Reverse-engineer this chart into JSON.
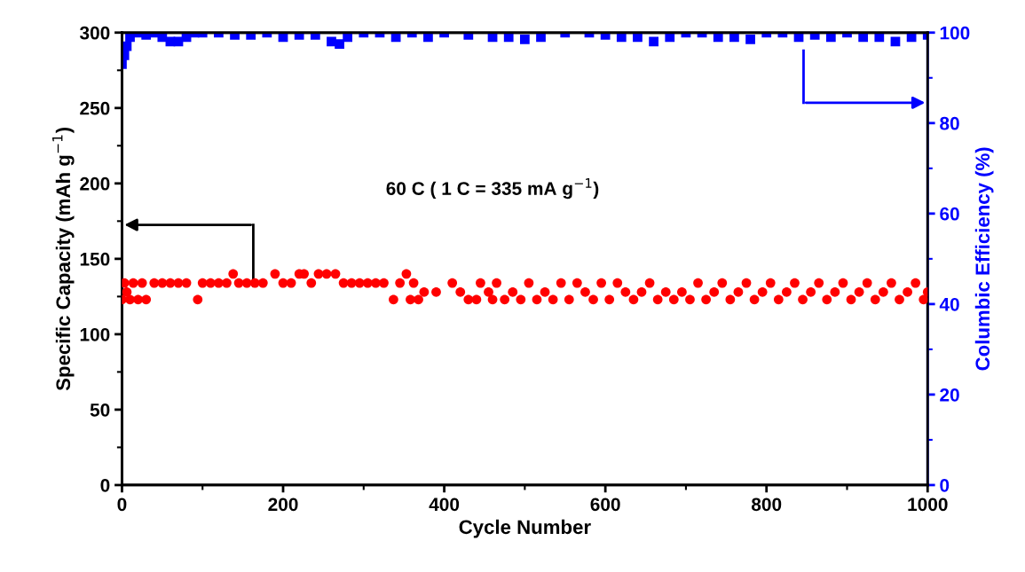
{
  "chart_data": {
    "type": "scatter",
    "xlabel": "Cycle Number",
    "ylabel": "Specific Capacity (mAh g$^{−1}$)",
    "y2label": "Columbic Efficiency (%)",
    "annotations": [
      "60 C ( 1 C = 335 mA g$^{−1}$)"
    ],
    "xlim": [
      0,
      1000
    ],
    "xticks": [
      0,
      200,
      400,
      600,
      800,
      1000
    ],
    "ylim": [
      0,
      300
    ],
    "yticks": [
      0,
      50,
      100,
      150,
      200,
      250,
      300
    ],
    "y2lim": [
      0,
      100
    ],
    "y2ticks": [
      0,
      20,
      40,
      60,
      80,
      100
    ],
    "grid": false,
    "legend": false,
    "series": [
      {
        "color": "#ff0000",
        "marker": "circle",
        "x": [
          0,
          3,
          6,
          10,
          14,
          20,
          25,
          30,
          40,
          50,
          60,
          70,
          80,
          94,
          100,
          110,
          120,
          130,
          138,
          145,
          155,
          165,
          175,
          190,
          200,
          210,
          220,
          226,
          235,
          244,
          254,
          265,
          275,
          285,
          295,
          305,
          315,
          325,
          337,
          345,
          353,
          358,
          362,
          368,
          375,
          390,
          410,
          420,
          430,
          440,
          445,
          455,
          460,
          465,
          475,
          485,
          495,
          505,
          515,
          525,
          535,
          545,
          555,
          565,
          575,
          585,
          595,
          605,
          615,
          625,
          635,
          645,
          655,
          665,
          675,
          685,
          695,
          705,
          715,
          725,
          735,
          745,
          755,
          765,
          775,
          785,
          795,
          805,
          815,
          825,
          835,
          845,
          855,
          865,
          875,
          885,
          895,
          905,
          915,
          925,
          935,
          945,
          955,
          965,
          975,
          985,
          995,
          1000
        ],
        "values": [
          123,
          134,
          128,
          123,
          134,
          123,
          134,
          123,
          134,
          134,
          134,
          134,
          134,
          123,
          134,
          134,
          134,
          134,
          140,
          134,
          134,
          134,
          134,
          140,
          134,
          134,
          140,
          140,
          134,
          140,
          140,
          140,
          134,
          134,
          134,
          134,
          134,
          134,
          123,
          134,
          140,
          123,
          134,
          123,
          128,
          128,
          134,
          128,
          123,
          123,
          134,
          128,
          123,
          134,
          123,
          128,
          123,
          134,
          123,
          128,
          123,
          134,
          123,
          134,
          128,
          123,
          134,
          123,
          134,
          128,
          123,
          128,
          134,
          123,
          128,
          123,
          128,
          123,
          134,
          123,
          128,
          134,
          123,
          128,
          134,
          123,
          128,
          134,
          123,
          128,
          134,
          123,
          128,
          134,
          123,
          128,
          134,
          123,
          128,
          134,
          123,
          128,
          134,
          123,
          128,
          134,
          123,
          128
        ]
      },
      {
        "color": "#0000ff",
        "marker": "square",
        "axis": "y2",
        "x": [
          0,
          3,
          6,
          10,
          20,
          30,
          40,
          50,
          60,
          70,
          80,
          90,
          100,
          120,
          140,
          160,
          180,
          200,
          220,
          240,
          260,
          270,
          280,
          300,
          320,
          340,
          360,
          380,
          400,
          430,
          460,
          480,
          500,
          520,
          550,
          580,
          600,
          620,
          640,
          660,
          680,
          700,
          720,
          740,
          760,
          780,
          800,
          820,
          840,
          860,
          880,
          900,
          920,
          940,
          960,
          980,
          1000
        ],
        "values": [
          93,
          95,
          97,
          99,
          100,
          99.5,
          100,
          99,
          98,
          98,
          99,
          100,
          100,
          100,
          99.5,
          99.5,
          100,
          99,
          99.5,
          99.5,
          98,
          97.5,
          99,
          100,
          100,
          99,
          100,
          99,
          100,
          99.5,
          99,
          99,
          98.5,
          99,
          100,
          100,
          99.5,
          99,
          99,
          98,
          99,
          100,
          100,
          99,
          99,
          98.5,
          100,
          100,
          99,
          99.5,
          99,
          100,
          99,
          99,
          98,
          99,
          99.5
        ]
      }
    ]
  }
}
